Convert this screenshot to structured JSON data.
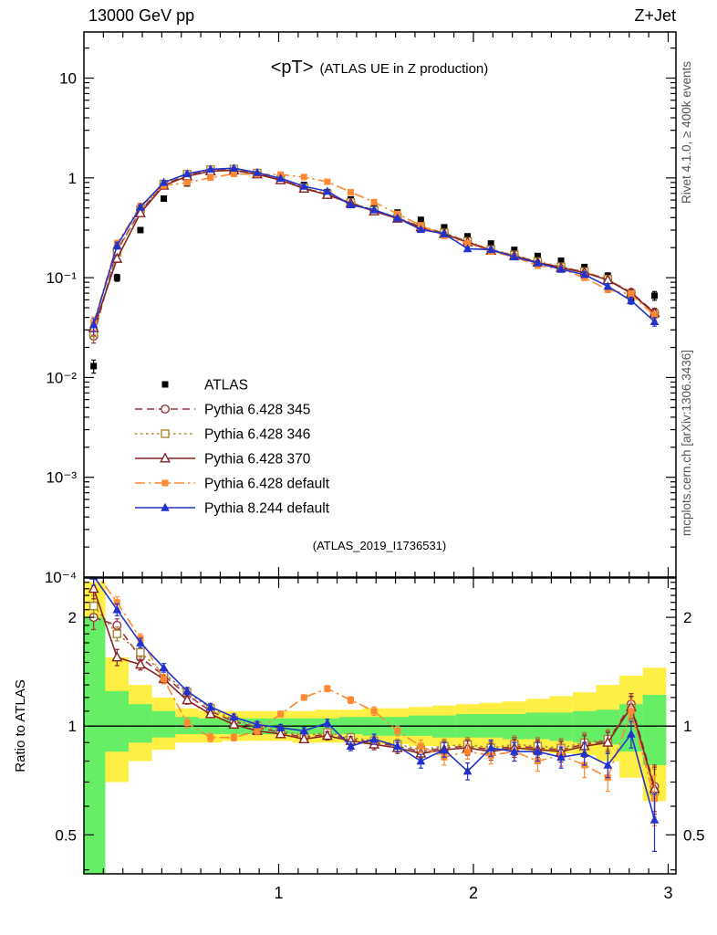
{
  "header": {
    "left": "13000 GeV pp",
    "right": "Z+Jet"
  },
  "title": {
    "main": "<pT>",
    "sub": "(ATLAS UE in Z production)"
  },
  "side_labels": {
    "top": "Rivet 4.1.0, ≥ 400k events",
    "bottom": "mcplots.cern.ch [arXiv:1306.3436]"
  },
  "watermark": "(ATLAS_2019_I1736531)",
  "ratio_axis_label": "Ratio to ATLAS",
  "chart_data": {
    "type": "line",
    "title": "<pT> (ATLAS UE in Z production)",
    "xlabel": "",
    "ylabel": "",
    "legend_position": "left-middle",
    "grid": false,
    "xlim": [
      0,
      3.04
    ],
    "x_ticks": [
      {
        "v": 1,
        "t": "1"
      },
      {
        "v": 2,
        "t": "2"
      },
      {
        "v": 3,
        "t": "3"
      }
    ],
    "x_minor_step": 0.1,
    "x": [
      0.05,
      0.17,
      0.29,
      0.41,
      0.53,
      0.65,
      0.77,
      0.89,
      1.01,
      1.13,
      1.25,
      1.37,
      1.49,
      1.61,
      1.73,
      1.85,
      1.97,
      2.09,
      2.21,
      2.33,
      2.45,
      2.57,
      2.69,
      2.81,
      2.93
    ],
    "main_panel": {
      "scale": "log",
      "ylim": [
        0.0001,
        29
      ],
      "yticks": [
        {
          "v": 10,
          "t": "10"
        },
        {
          "v": 1,
          "t": "1"
        },
        {
          "v": 0.1,
          "t": "10⁻¹"
        },
        {
          "v": 0.01,
          "t": "10⁻²"
        },
        {
          "v": 0.001,
          "t": "10⁻³"
        },
        {
          "v": 0.0001,
          "t": "10⁻⁴"
        }
      ],
      "err_frac": [
        0.15,
        0.08,
        0.05,
        0.04,
        0.03,
        0.025,
        0.02,
        0.02,
        0.02,
        0.02,
        0.025,
        0.025,
        0.03,
        0.03,
        0.035,
        0.04,
        0.04,
        0.045,
        0.05,
        0.05,
        0.055,
        0.06,
        0.06,
        0.08,
        0.1
      ],
      "series": [
        {
          "id": "atlas",
          "name": "ATLAS",
          "color": "#000000",
          "marker": "sq-f",
          "line": "none",
          "values": [
            0.013,
            0.1,
            0.3,
            0.62,
            0.88,
            1.08,
            1.18,
            1.12,
            1.0,
            0.85,
            0.72,
            0.61,
            0.52,
            0.45,
            0.38,
            0.32,
            0.26,
            0.22,
            0.19,
            0.165,
            0.148,
            0.128,
            0.105,
            0.062,
            0.066
          ]
        },
        {
          "id": "p345",
          "name": "Pythia 6.428 345",
          "color": "#993344",
          "marker": "ci-o",
          "line": "dashed",
          "ratio_to_atlas": [
            2.0,
            1.9,
            1.55,
            1.38,
            1.22,
            1.1,
            1.03,
            0.99,
            0.96,
            0.93,
            0.95,
            0.92,
            0.9,
            0.88,
            0.85,
            0.87,
            0.88,
            0.86,
            0.88,
            0.87,
            0.86,
            0.89,
            0.91,
            1.15,
            0.68
          ]
        },
        {
          "id": "p346",
          "name": "Pythia 6.428 346",
          "color": "#aa8833",
          "marker": "sq-o",
          "line": "dotted",
          "ratio_to_atlas": [
            2.15,
            1.8,
            1.6,
            1.4,
            1.24,
            1.12,
            1.04,
            1.0,
            0.97,
            0.94,
            0.96,
            0.93,
            0.91,
            0.89,
            0.86,
            0.88,
            0.89,
            0.87,
            0.89,
            0.88,
            0.87,
            0.9,
            0.92,
            1.12,
            0.66
          ]
        },
        {
          "id": "p370",
          "name": "Pythia 6.428 370",
          "color": "#882222",
          "marker": "tr-o",
          "line": "solid",
          "ratio_to_atlas": [
            2.4,
            1.55,
            1.48,
            1.35,
            1.18,
            1.08,
            1.01,
            0.97,
            0.95,
            0.92,
            0.94,
            0.91,
            0.89,
            0.87,
            0.84,
            0.86,
            0.87,
            0.85,
            0.87,
            0.86,
            0.85,
            0.88,
            0.9,
            1.13,
            0.67
          ]
        },
        {
          "id": "p6def",
          "name": "Pythia 6.428 default",
          "color": "#ff8833",
          "marker": "sq-f",
          "line": "dashdot",
          "ratio_to_atlas": [
            2.7,
            2.2,
            1.75,
            1.35,
            1.02,
            0.93,
            0.93,
            0.97,
            1.08,
            1.2,
            1.27,
            1.18,
            1.1,
            0.97,
            0.88,
            0.82,
            0.85,
            0.83,
            0.85,
            0.8,
            0.83,
            0.78,
            0.72,
            1.1,
            0.63
          ]
        },
        {
          "id": "p8def",
          "name": "Pythia 8.244 default",
          "color": "#2233cc",
          "marker": "tr-f",
          "line": "solid",
          "ratio_to_atlas": [
            2.6,
            2.1,
            1.7,
            1.45,
            1.25,
            1.13,
            1.06,
            1.01,
            0.99,
            0.97,
            1.02,
            0.88,
            0.92,
            0.88,
            0.8,
            0.86,
            0.75,
            0.87,
            0.85,
            0.85,
            0.82,
            0.84,
            0.78,
            0.95,
            0.55
          ]
        }
      ]
    },
    "ratio_panel": {
      "scale": "log",
      "ylim": [
        0.39,
        2.57
      ],
      "yticks": [
        {
          "v": 2,
          "t": "2"
        },
        {
          "v": 1,
          "t": "1"
        },
        {
          "v": 0.5,
          "t": "0.5"
        }
      ],
      "reference_line": 1,
      "err_abs": [
        0.15,
        0.08,
        0.05,
        0.04,
        0.03,
        0.025,
        0.02,
        0.02,
        0.02,
        0.02,
        0.025,
        0.025,
        0.03,
        0.03,
        0.035,
        0.04,
        0.04,
        0.045,
        0.05,
        0.05,
        0.055,
        0.06,
        0.06,
        0.08,
        0.1
      ],
      "bands": {
        "yellow": {
          "color": "#ffee44",
          "lo": [
            0.33,
            0.7,
            0.8,
            0.86,
            0.9,
            0.9,
            0.91,
            0.91,
            0.91,
            0.9,
            0.9,
            0.9,
            0.89,
            0.89,
            0.88,
            0.88,
            0.87,
            0.87,
            0.86,
            0.85,
            0.84,
            0.83,
            0.8,
            0.72,
            0.62
          ],
          "hi": [
            2.5,
            1.55,
            1.3,
            1.2,
            1.12,
            1.1,
            1.1,
            1.1,
            1.1,
            1.1,
            1.11,
            1.11,
            1.12,
            1.12,
            1.13,
            1.14,
            1.15,
            1.16,
            1.17,
            1.19,
            1.21,
            1.24,
            1.3,
            1.38,
            1.45
          ]
        },
        "green": {
          "color": "#66ee66",
          "lo": [
            0.33,
            0.85,
            0.9,
            0.93,
            0.95,
            0.95,
            0.95,
            0.95,
            0.95,
            0.95,
            0.95,
            0.95,
            0.94,
            0.94,
            0.94,
            0.93,
            0.93,
            0.93,
            0.92,
            0.92,
            0.91,
            0.9,
            0.89,
            0.85,
            0.78
          ],
          "hi": [
            2.0,
            1.25,
            1.15,
            1.1,
            1.06,
            1.05,
            1.05,
            1.05,
            1.05,
            1.05,
            1.05,
            1.06,
            1.06,
            1.06,
            1.07,
            1.07,
            1.08,
            1.08,
            1.08,
            1.09,
            1.09,
            1.1,
            1.11,
            1.15,
            1.22
          ]
        }
      }
    }
  }
}
